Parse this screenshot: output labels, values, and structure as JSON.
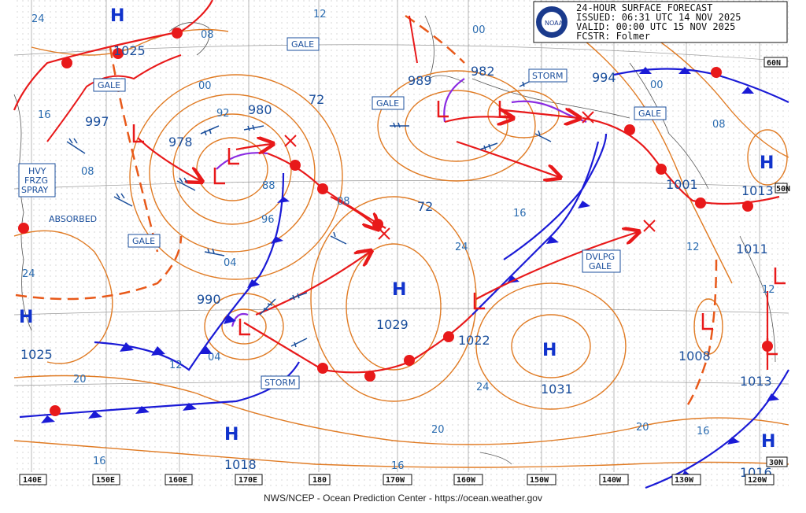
{
  "header": {
    "line1": "24-HOUR SURFACE FORECAST",
    "line2": "ISSUED: 06:31 UTC 14 NOV 2025",
    "line3": "VALID:   00:00 UTC 15 NOV 2025",
    "line4": "FCSTR:  Folmer",
    "logo_text": "NOAA"
  },
  "credit": "NWS/NCEP - Ocean Prediction Center - https://ocean.weather.gov",
  "lon_labels": [
    "140E",
    "150E",
    "160E",
    "170E",
    "180",
    "170W",
    "160W",
    "150W",
    "140W",
    "130W",
    "120W"
  ],
  "lat_labels": [
    "60N",
    "50N",
    "30N"
  ],
  "highs": [
    {
      "letter": "H",
      "value": "1025"
    },
    {
      "letter": "H",
      "value": "1025"
    },
    {
      "letter": "H",
      "value": "1029"
    },
    {
      "letter": "H",
      "value": "1031"
    },
    {
      "letter": "H",
      "value": "1018"
    },
    {
      "letter": "H",
      "value": "1013"
    },
    {
      "letter": "H",
      "value": "1016"
    }
  ],
  "lows": [
    {
      "value": "997"
    },
    {
      "value": "978"
    },
    {
      "value": "980"
    },
    {
      "value": "990"
    },
    {
      "value": "989"
    },
    {
      "value": "982"
    },
    {
      "value": "994"
    },
    {
      "value": "1022"
    },
    {
      "value": "1008"
    },
    {
      "value": "1013"
    },
    {
      "value": "1011"
    },
    {
      "value": "1001"
    }
  ],
  "warnings": {
    "gale1": "GALE",
    "gale2": "GALE",
    "gale3": "GALE",
    "gale4": "GALE",
    "gale5": "GALE",
    "storm1": "STORM",
    "storm2": "STORM",
    "hvy1": "HVY",
    "hvy2": "FRZG",
    "hvy3": "SPRAY",
    "dvlpg1": "DVLPG",
    "dvlpg2": "GALE",
    "absorbed": "ABSORBED"
  },
  "isobar_labels": [
    "24",
    "12",
    "08",
    "00",
    "92",
    "16",
    "08",
    "88",
    "96",
    "04",
    "04",
    "12",
    "20",
    "16",
    "72",
    "72",
    "08",
    "24",
    "16",
    "12",
    "00",
    "00",
    "08",
    "24",
    "20",
    "20",
    "16",
    "16",
    "12",
    "24"
  ],
  "colors": {
    "isobar": "#e07b24",
    "warm_front": "#e8191a",
    "cold_front": "#1a1ad6",
    "occluded": "#8a2be2",
    "track": "#e8191a",
    "trough": "#e8591a",
    "text": "#1b4f9c"
  }
}
